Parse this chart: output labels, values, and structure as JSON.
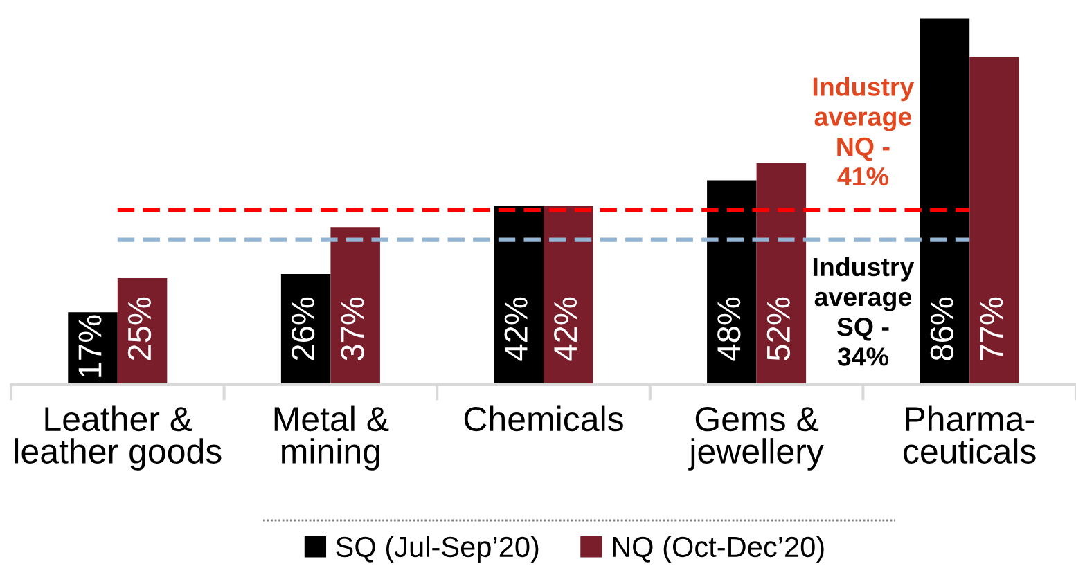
{
  "chart_data": {
    "type": "bar",
    "categories": [
      "Leather &\nleather goods",
      "Metal &\nmining",
      "Chemicals",
      "Gems &\njewellery",
      "Pharma-\nceuticals"
    ],
    "series": [
      {
        "name": "SQ (Jul-Sep’20)",
        "color": "#000000",
        "values": [
          17,
          26,
          42,
          48,
          86
        ],
        "value_labels": [
          "17%",
          "26%",
          "42%",
          "48%",
          "86%"
        ]
      },
      {
        "name": "NQ (Oct-Dec’20)",
        "color": "#7b1e2b",
        "values": [
          25,
          37,
          42,
          52,
          77
        ],
        "value_labels": [
          "25%",
          "37%",
          "42%",
          "52%",
          "77%"
        ]
      }
    ],
    "tick_labels": "x",
    "legend": "bottom",
    "ref_lines": [
      {
        "axis": "y",
        "value": 41,
        "label": "Industry\naverage\nNQ -\n41%",
        "color": "#ff0000",
        "line_style": "dashed"
      },
      {
        "axis": "y",
        "value": 34,
        "label": "Industry\naverage\nSQ -\n34%",
        "color": "#93b4d2",
        "line_style": "dashed"
      }
    ]
  }
}
